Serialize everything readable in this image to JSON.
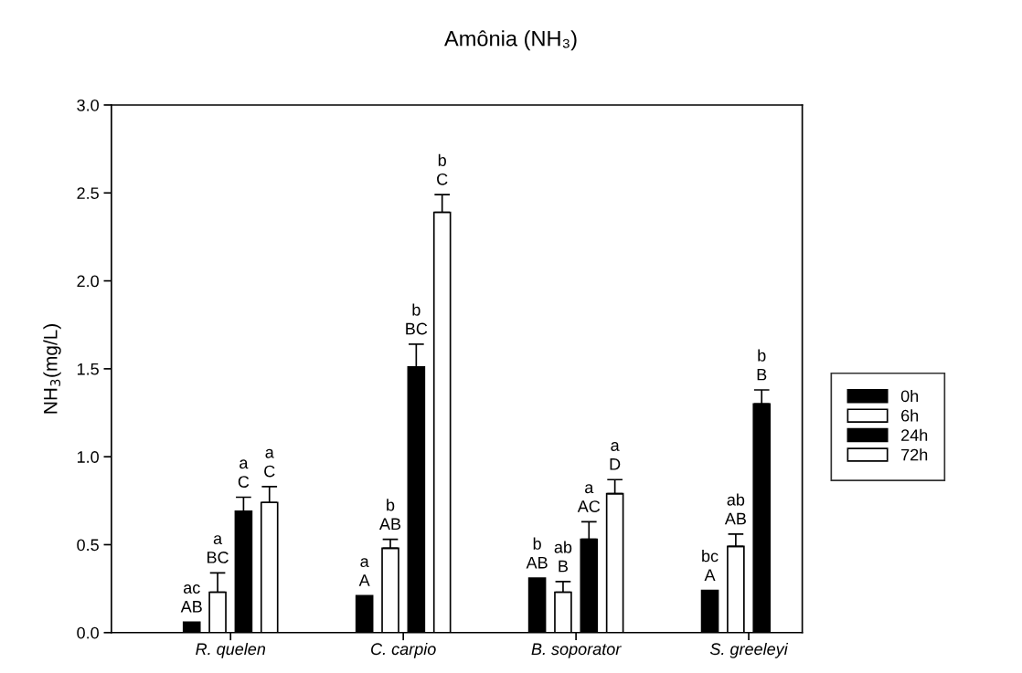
{
  "chart_data": {
    "type": "bar",
    "title": "Amônia (NH₃)",
    "ylabel": "NH$_{3}$(mg/L)",
    "categories": [
      "R. quelen",
      "C. carpio",
      "B. soporator",
      "S. greeleyi"
    ],
    "ylim": [
      0,
      3.0
    ],
    "yticks": [
      {
        "value": 0,
        "label": "0.0"
      },
      {
        "value": 0.5,
        "label": "0.5"
      },
      {
        "value": 1,
        "label": "1.0"
      },
      {
        "value": 1.5,
        "label": "1.5"
      },
      {
        "value": 2,
        "label": "2.0"
      },
      {
        "value": 2.5,
        "label": "2.5"
      },
      {
        "value": 3,
        "label": "3.0"
      }
    ],
    "grid": false,
    "legend": "right",
    "series": [
      {
        "name": "0h",
        "color": "#000000",
        "values": [
          0.06,
          0.21,
          0.31,
          0.24
        ],
        "errors": [
          null,
          null,
          null,
          null
        ],
        "value_labels": [
          "ac\nAB",
          "a\nA",
          "b\nAB",
          "bc\nA"
        ]
      },
      {
        "name": "6h",
        "color": "#ffffff",
        "values": [
          0.23,
          0.48,
          0.23,
          0.49
        ],
        "errors": [
          [
            0.23,
            0.34
          ],
          [
            0.48,
            0.53
          ],
          [
            0.23,
            0.29
          ],
          [
            0.49,
            0.56
          ]
        ],
        "value_labels": [
          "a\nBC",
          "b\nAB",
          "ab\nB",
          "ab\nAB"
        ]
      },
      {
        "name": "24h",
        "color": "#000000",
        "values": [
          0.69,
          1.51,
          0.53,
          1.3
        ],
        "errors": [
          [
            0.69,
            0.77
          ],
          [
            1.51,
            1.64
          ],
          [
            0.53,
            0.63
          ],
          [
            1.3,
            1.38
          ]
        ],
        "value_labels": [
          "a\nC",
          "b\nBC",
          "a\nAC",
          "b\nB"
        ]
      },
      {
        "name": "72h",
        "color": "#ffffff",
        "values": [
          0.74,
          2.39,
          0.79,
          null
        ],
        "errors": [
          [
            0.74,
            0.83
          ],
          [
            2.39,
            2.49
          ],
          [
            0.79,
            0.87
          ],
          null
        ],
        "value_labels": [
          "a\nC",
          "b\nC",
          "a\nD",
          null
        ]
      }
    ]
  }
}
